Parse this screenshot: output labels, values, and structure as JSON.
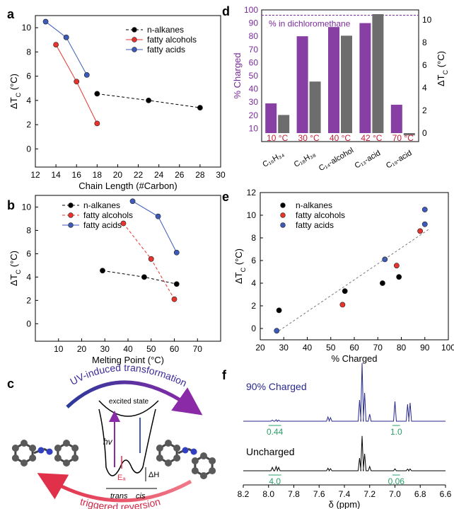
{
  "panels": {
    "a": {
      "letter": "a"
    },
    "b": {
      "letter": "b"
    },
    "c": {
      "letter": "c"
    },
    "d": {
      "letter": "d"
    },
    "e": {
      "letter": "e"
    },
    "f": {
      "letter": "f"
    }
  },
  "colors": {
    "black": "#000000",
    "red": "#e8322e",
    "blue": "#3d5ab8",
    "purple": "#7a2a9a",
    "axis_red": "#c4203a",
    "nmr_blue": "#27278f",
    "nmr_green": "#2aa06a"
  },
  "chart_data": [
    {
      "panel": "a",
      "type": "line",
      "xlabel": "Chain Length (#Carbon)",
      "ylabel": "ΔT_C (°C)",
      "xlim": [
        12,
        30
      ],
      "ylim": [
        -1.5,
        11
      ],
      "xticks": [
        "12",
        "14",
        "16",
        "18",
        "20",
        "22",
        "24",
        "26",
        "28",
        "30"
      ],
      "yticks": [
        "0",
        "2",
        "4",
        "6",
        "8",
        "10"
      ],
      "legend_position": "top-right",
      "series": [
        {
          "name": "n-alkanes",
          "color": "#000000",
          "dashed": true,
          "points": [
            [
              18,
              4.55
            ],
            [
              23,
              4.0
            ],
            [
              28,
              3.4
            ]
          ]
        },
        {
          "name": "fatty alcohols",
          "color": "#e8322e",
          "dashed": false,
          "points": [
            [
              14,
              8.6
            ],
            [
              16,
              5.55
            ],
            [
              18,
              2.1
            ]
          ]
        },
        {
          "name": "fatty acids",
          "color": "#3d5ab8",
          "dashed": false,
          "points": [
            [
              13,
              10.5
            ],
            [
              15,
              9.2
            ],
            [
              17,
              6.1
            ]
          ]
        }
      ]
    },
    {
      "panel": "b",
      "type": "line",
      "xlabel": "Melting Point (°C)",
      "ylabel": "ΔT_C (°C)",
      "xlim": [
        0,
        80
      ],
      "ylim": [
        -1.5,
        11
      ],
      "xticks": [
        "10",
        "20",
        "30",
        "40",
        "50",
        "60",
        "70"
      ],
      "yticks": [
        "0",
        "2",
        "4",
        "6",
        "8",
        "10"
      ],
      "legend_position": "top-left",
      "series": [
        {
          "name": "n-alkanes",
          "color": "#000000",
          "dashed": true,
          "points": [
            [
              29,
              4.55
            ],
            [
              47,
              4.0
            ],
            [
              61,
              3.4
            ]
          ]
        },
        {
          "name": "fatty alcohols",
          "color": "#e8322e",
          "dashed": true,
          "points": [
            [
              38,
              8.6
            ],
            [
              50,
              5.55
            ],
            [
              60,
              2.1
            ]
          ]
        },
        {
          "name": "fatty acids",
          "color": "#3d5ab8",
          "dashed": false,
          "points": [
            [
              42,
              10.5
            ],
            [
              53,
              9.2
            ],
            [
              61,
              6.1
            ]
          ]
        }
      ]
    },
    {
      "panel": "d",
      "type": "bar",
      "ylabel": "% Charged",
      "y2label": "ΔT_C (°C)",
      "ylim": [
        0,
        100
      ],
      "y2lim": [
        0,
        10.5
      ],
      "yticks": [
        "10",
        "20",
        "30",
        "40",
        "50",
        "60",
        "70",
        "80",
        "90",
        "100"
      ],
      "y2ticks": [
        "0",
        "2",
        "4",
        "6",
        "8",
        "10"
      ],
      "annotation": "% in dichloromethane",
      "reference_line": 96,
      "categories": [
        "C₁₆H₃₄",
        "C₁₈H₃₈",
        "C₁₄-alcohol",
        "C₁₃-acid",
        "C₁₉-acid"
      ],
      "temperatures": [
        "10 °C",
        "30 °C",
        "40 °C",
        "42 °C",
        "70 °C"
      ],
      "series": [
        {
          "name": "% Charged",
          "color": "#7a2a9a",
          "values": [
            29,
            80,
            87,
            90,
            28
          ]
        },
        {
          "name": "ΔT_C",
          "color": "#6d6d6d",
          "values": [
            1.6,
            4.55,
            8.6,
            10.5,
            -0.2
          ]
        }
      ]
    },
    {
      "panel": "e",
      "type": "scatter",
      "xlabel": "% Charged",
      "ylabel": "ΔT_C (°C)",
      "xlim": [
        20,
        100
      ],
      "ylim": [
        -1,
        12
      ],
      "xticks": [
        "20",
        "30",
        "40",
        "50",
        "60",
        "70",
        "80",
        "90",
        "100"
      ],
      "yticks": [
        "0",
        "2",
        "4",
        "6",
        "8",
        "10",
        "12"
      ],
      "legend_position": "top-left",
      "trendline": [
        [
          28,
          -0.2
        ],
        [
          92,
          8.8
        ]
      ],
      "series": [
        {
          "name": "n-alkanes",
          "color": "#000000",
          "points": [
            [
              28,
              1.6
            ],
            [
              56,
              3.3
            ],
            [
              72,
              4.0
            ],
            [
              79,
              4.55
            ]
          ]
        },
        {
          "name": "fatty alcohols",
          "color": "#e8322e",
          "points": [
            [
              55,
              2.1
            ],
            [
              78,
              5.55
            ],
            [
              88,
              8.6
            ]
          ]
        },
        {
          "name": "fatty acids",
          "color": "#3d5ab8",
          "points": [
            [
              27,
              -0.2
            ],
            [
              73,
              6.1
            ],
            [
              90,
              9.2
            ],
            [
              90,
              10.5
            ]
          ]
        }
      ]
    },
    {
      "panel": "f",
      "type": "line",
      "xlabel": "δ (ppm)",
      "xlim": [
        8.2,
        6.6
      ],
      "xticks": [
        "8.2",
        "8.0",
        "7.8",
        "7.6",
        "7.4",
        "7.2",
        "7.0",
        "6.8",
        "6.6"
      ],
      "series": [
        {
          "name": "90% Charged",
          "color": "#27278f",
          "integrals": [
            {
              "range": [
                8.0,
                7.9
              ],
              "label": "0.44"
            },
            {
              "range": [
                7.02,
                6.96
              ],
              "label": "1.0"
            }
          ]
        },
        {
          "name": "Uncharged",
          "color": "#000000",
          "integrals": [
            {
              "range": [
                8.0,
                7.9
              ],
              "label": "4.0"
            },
            {
              "range": [
                7.02,
                6.96
              ],
              "label": "0.06"
            }
          ]
        }
      ]
    }
  ],
  "diagram_c": {
    "top_arrow_label": "UV-induced transformation",
    "bottom_arrow_label": "triggered reversion",
    "excited_state": "excited state",
    "hv": "hv",
    "ea": "Eₐ",
    "dh": "ΔH",
    "trans": "trans",
    "cis": "cis"
  }
}
